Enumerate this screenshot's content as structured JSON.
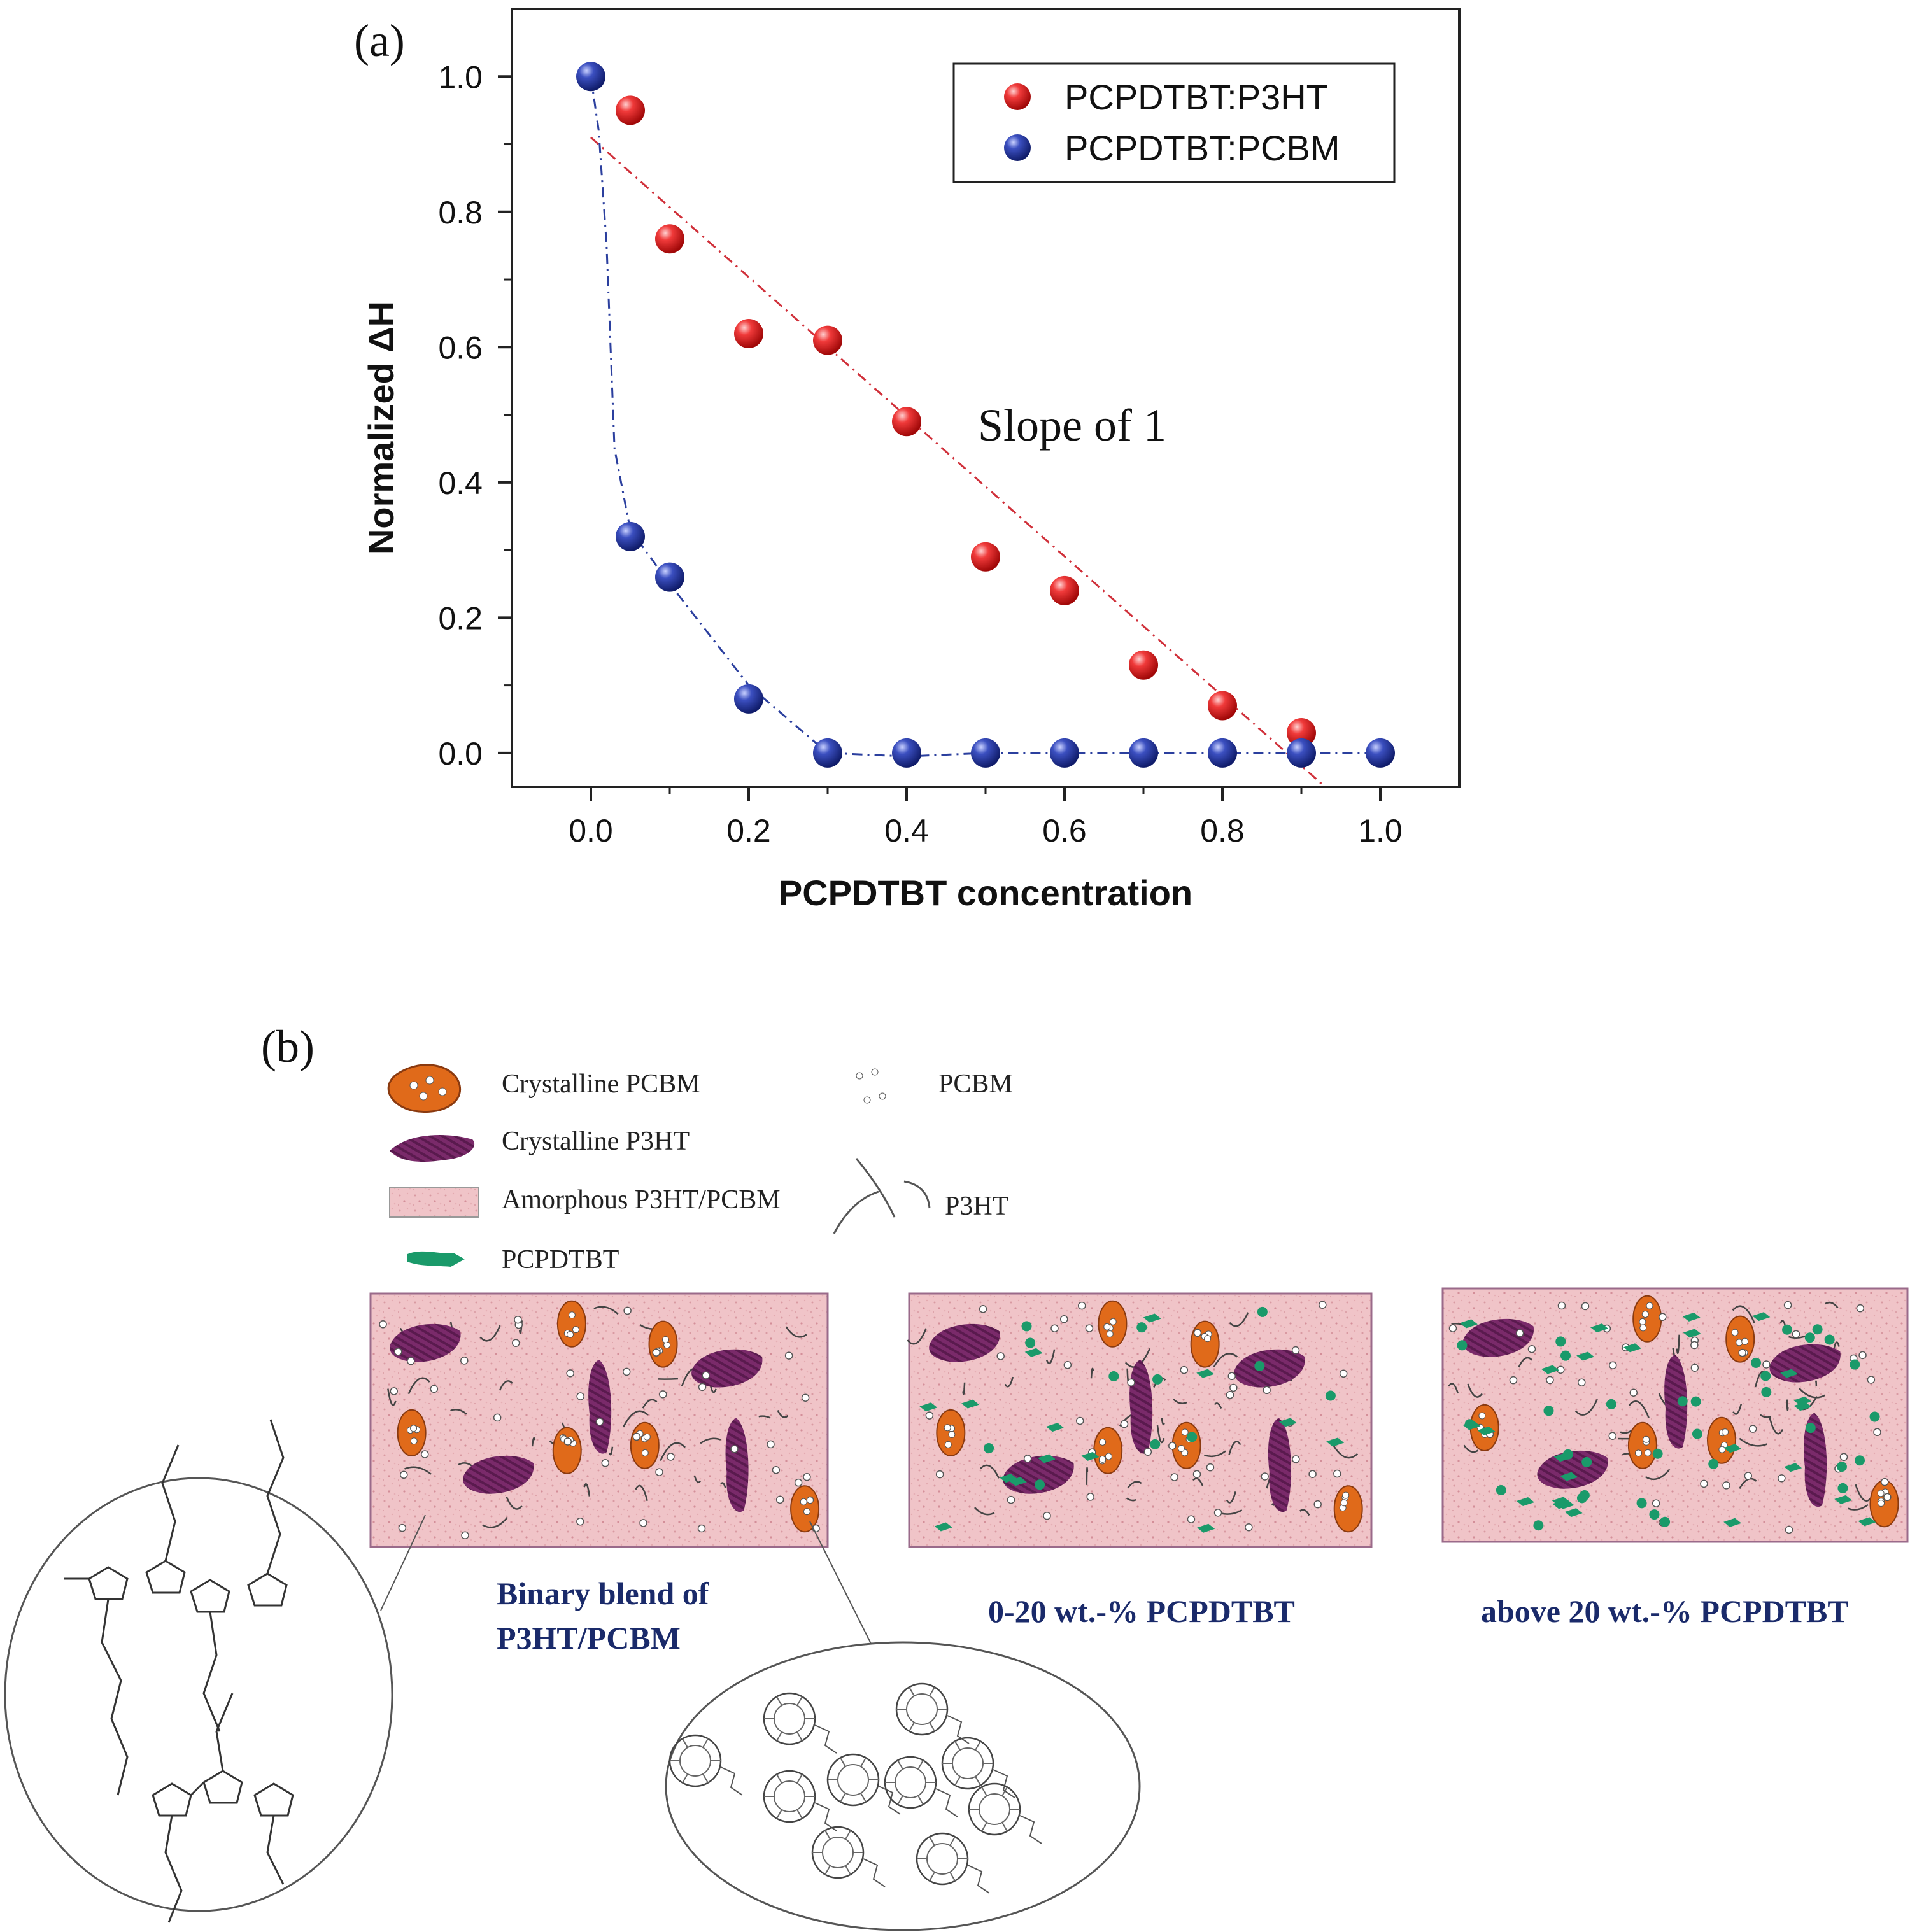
{
  "panel_a": {
    "label": "(a)"
  },
  "panel_b": {
    "label": "(b)",
    "legend": {
      "crystalline_pcbm": "Crystalline PCBM",
      "crystalline_p3ht": "Crystalline P3HT",
      "amorphous": "Amorphous P3HT/PCBM",
      "pcpdtbt": "PCPDTBT",
      "pcbm": "PCBM",
      "p3ht": "P3HT"
    },
    "captions": {
      "binary_line1": "Binary blend of",
      "binary_line2": "P3HT/PCBM",
      "low": "0-20 wt.-% PCPDTBT",
      "high": "above 20 wt.-% PCPDTBT"
    },
    "colors": {
      "matrix_fill": "#f0c4c8",
      "crystalline_p3ht": "#7a2a6a",
      "crystalline_pcbm": "#e06a1a",
      "pcpdtbt": "#1a9a6a",
      "caption": "#1a2a6a"
    }
  },
  "chart_data": {
    "type": "scatter",
    "xlabel": "PCPDTBT concentration",
    "ylabel": "Normalized ΔH",
    "xlim": [
      -0.1,
      1.1
    ],
    "ylim": [
      -0.05,
      1.1
    ],
    "xticks": [
      "0.0",
      "0.2",
      "0.4",
      "0.6",
      "0.8",
      "1.0"
    ],
    "xtick_values": [
      0.0,
      0.2,
      0.4,
      0.6,
      0.8,
      1.0
    ],
    "yticks": [
      "0.0",
      "0.2",
      "0.4",
      "0.6",
      "0.8",
      "1.0"
    ],
    "ytick_values": [
      0.0,
      0.2,
      0.4,
      0.6,
      0.8,
      1.0
    ],
    "grid": false,
    "legend_position": "top-right",
    "annotation": "Slope of 1",
    "series": [
      {
        "name": "PCPDTBT:P3HT",
        "color": "#e8222a",
        "x": [
          0.05,
          0.1,
          0.2,
          0.3,
          0.4,
          0.5,
          0.6,
          0.7,
          0.8,
          0.9
        ],
        "y": [
          0.95,
          0.76,
          0.62,
          0.61,
          0.49,
          0.29,
          0.24,
          0.13,
          0.07,
          0.03
        ],
        "fit_line": {
          "x": [
            0.0,
            0.93
          ],
          "y": [
            0.91,
            -0.05
          ]
        }
      },
      {
        "name": "PCPDTBT:PCBM",
        "color": "#2b3f9e",
        "x": [
          0.0,
          0.05,
          0.1,
          0.2,
          0.3,
          0.4,
          0.5,
          0.6,
          0.7,
          0.8,
          0.9,
          1.0
        ],
        "y": [
          1.0,
          0.32,
          0.26,
          0.08,
          0.0,
          0.0,
          0.0,
          0.0,
          0.0,
          0.0,
          0.0,
          0.0
        ],
        "fit_line": {
          "x": [
            0.0,
            0.01,
            0.02,
            0.03,
            0.05,
            0.1,
            0.2,
            0.3,
            0.4,
            0.5,
            0.6,
            0.7,
            0.8,
            0.9,
            1.0
          ],
          "y": [
            1.0,
            0.92,
            0.75,
            0.45,
            0.33,
            0.25,
            0.1,
            0.0,
            -0.005,
            0.0,
            0.0,
            0.0,
            0.0,
            0.0,
            0.0
          ]
        }
      }
    ]
  }
}
